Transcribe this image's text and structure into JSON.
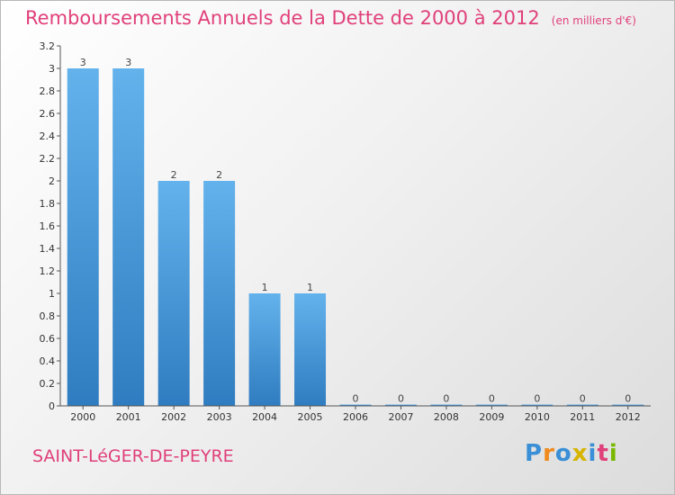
{
  "header": {
    "title": "Remboursements Annuels de la Dette de 2000 à 2012",
    "subtitle": "(en milliers d'€)"
  },
  "footer": {
    "commune": "SAINT-LéGER-DE-PEYRE",
    "logo": [
      "P",
      "r",
      "o",
      "x",
      "i",
      "t",
      "i"
    ],
    "logo_colors": [
      "#3a8fd6",
      "#f08a1c",
      "#3a8fd6",
      "#d6b400",
      "#3a8fd6",
      "#e0407a",
      "#7ab800"
    ]
  },
  "chart_data": {
    "type": "bar",
    "categories": [
      "2000",
      "2001",
      "2002",
      "2003",
      "2004",
      "2005",
      "2006",
      "2007",
      "2008",
      "2009",
      "2010",
      "2011",
      "2012"
    ],
    "values": [
      3,
      3,
      2,
      2,
      1,
      1,
      0,
      0,
      0,
      0,
      0,
      0,
      0
    ],
    "data_labels": [
      "3",
      "3",
      "2",
      "2",
      "1",
      "1",
      "0",
      "0",
      "0",
      "0",
      "0",
      "0",
      "0"
    ],
    "title": "Remboursements Annuels de la Dette de 2000 à 2012",
    "subtitle": "(en milliers d'€)",
    "xlabel": "",
    "ylabel": "",
    "ylim": [
      0,
      3.2
    ],
    "yticks": [
      {
        "value": 0,
        "label": "0"
      },
      {
        "value": 0.2,
        "label": "0.2"
      },
      {
        "value": 0.4,
        "label": "0.4"
      },
      {
        "value": 0.6,
        "label": "0.6"
      },
      {
        "value": 0.8,
        "label": "0.8"
      },
      {
        "value": 1,
        "label": "1"
      },
      {
        "value": 1.2,
        "label": "1.2"
      },
      {
        "value": 1.4,
        "label": "1.4"
      },
      {
        "value": 1.6,
        "label": "1.6"
      },
      {
        "value": 1.8,
        "label": "1.8"
      },
      {
        "value": 2,
        "label": "2"
      },
      {
        "value": 2.2,
        "label": "2.2"
      },
      {
        "value": 2.4,
        "label": "2.4"
      },
      {
        "value": 2.6,
        "label": "2.6"
      },
      {
        "value": 2.8,
        "label": "2.8"
      },
      {
        "value": 3,
        "label": "3"
      },
      {
        "value": 3.2,
        "label": "3.2"
      }
    ],
    "grid": false,
    "legend": "none",
    "bar_color": "#4f9fdf"
  }
}
